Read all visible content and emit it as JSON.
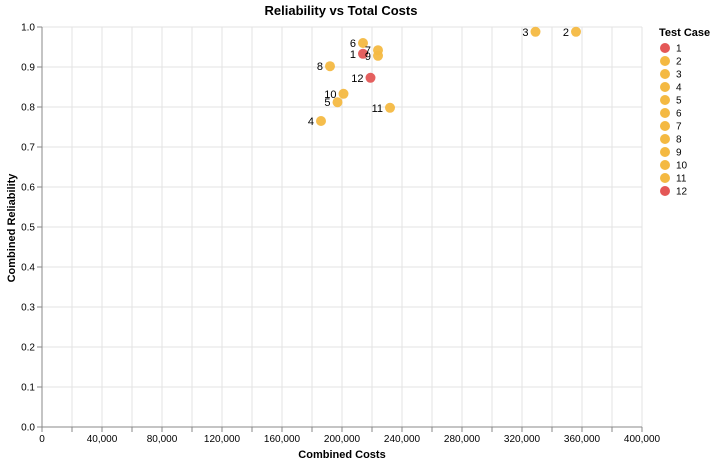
{
  "chart_data": {
    "type": "scatter",
    "title": "Reliability vs Total Costs",
    "xlabel": "Combined Costs",
    "ylabel": "Combined Reliability",
    "xlim": [
      0,
      400000
    ],
    "ylim": [
      0,
      1
    ],
    "x_ticks": [
      0,
      40000,
      80000,
      120000,
      160000,
      200000,
      240000,
      280000,
      320000,
      360000,
      400000
    ],
    "x_tick_labels": [
      "0",
      "40,000",
      "80,000",
      "120,000",
      "160,000",
      "200,000",
      "240,000",
      "280,000",
      "320,000",
      "360,000",
      "400,000"
    ],
    "y_ticks": [
      0,
      0.1,
      0.2,
      0.3,
      0.4,
      0.5,
      0.6,
      0.7,
      0.8,
      0.9,
      1.0
    ],
    "y_tick_labels": [
      "0.0",
      "0.1",
      "0.2",
      "0.3",
      "0.4",
      "0.5",
      "0.6",
      "0.7",
      "0.8",
      "0.9",
      "1.0"
    ],
    "grid": true,
    "legend": {
      "title": "Test Case",
      "placement": "right"
    },
    "colors": {
      "red": "#e45756",
      "orange": "#f4b942"
    },
    "points": [
      {
        "label": "1",
        "x": 214000,
        "y": 0.933,
        "color": "red"
      },
      {
        "label": "2",
        "x": 356000,
        "y": 0.988,
        "color": "orange"
      },
      {
        "label": "3",
        "x": 329000,
        "y": 0.988,
        "color": "orange"
      },
      {
        "label": "4",
        "x": 186000,
        "y": 0.765,
        "color": "orange"
      },
      {
        "label": "5",
        "x": 197000,
        "y": 0.812,
        "color": "orange"
      },
      {
        "label": "6",
        "x": 214000,
        "y": 0.96,
        "color": "orange"
      },
      {
        "label": "7",
        "x": 224000,
        "y": 0.942,
        "color": "orange"
      },
      {
        "label": "8",
        "x": 192000,
        "y": 0.902,
        "color": "orange"
      },
      {
        "label": "9",
        "x": 224000,
        "y": 0.928,
        "color": "orange"
      },
      {
        "label": "10",
        "x": 201000,
        "y": 0.833,
        "color": "orange"
      },
      {
        "label": "11",
        "x": 232000,
        "y": 0.798,
        "color": "orange"
      },
      {
        "label": "12",
        "x": 219000,
        "y": 0.873,
        "color": "red"
      }
    ]
  }
}
